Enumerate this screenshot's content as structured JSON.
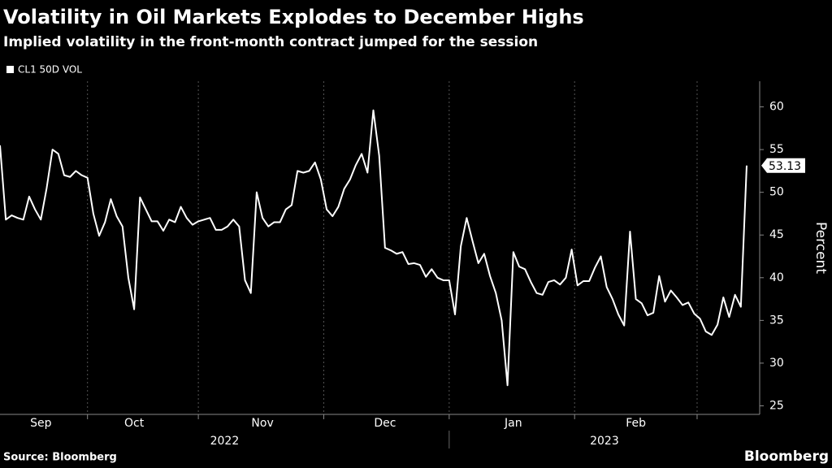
{
  "chart_data": {
    "type": "line",
    "title": "Volatility in Oil Markets Explodes to December Highs",
    "subtitle": "Implied volatility in the front-month contract jumped for the session",
    "y_axis_label": "Percent",
    "source": "Source: Bloomberg",
    "brand": "Bloomberg",
    "axis_side": "right",
    "grid": "x",
    "legend_position": "top-left",
    "categories": [
      null,
      null,
      null,
      null,
      null,
      null,
      null,
      "Sep",
      null,
      null,
      null,
      null,
      null,
      null,
      null,
      null,
      null,
      null,
      null,
      null,
      null,
      null,
      null,
      "Oct",
      null,
      null,
      null,
      null,
      null,
      null,
      null,
      null,
      null,
      null,
      null,
      null,
      null,
      null,
      null,
      null,
      null,
      null,
      null,
      null,
      null,
      "Nov",
      null,
      null,
      null,
      null,
      null,
      null,
      null,
      null,
      null,
      null,
      null,
      null,
      null,
      null,
      null,
      null,
      null,
      null,
      null,
      null,
      "Dec",
      null,
      null,
      null,
      null,
      null,
      null,
      null,
      null,
      null,
      null,
      null,
      null,
      null,
      null,
      null,
      null,
      null,
      null,
      null,
      null,
      null,
      "Jan",
      null,
      null,
      null,
      null,
      null,
      null,
      null,
      null,
      null,
      null,
      null,
      null,
      null,
      null,
      null,
      null,
      null,
      null,
      null,
      null,
      "Feb",
      null,
      null,
      null,
      null,
      null,
      null,
      null,
      null,
      null,
      null,
      null,
      null,
      null,
      null,
      null,
      null,
      null,
      null,
      null
    ],
    "x_groups": [
      {
        "label": "2022",
        "span": 4
      },
      {
        "label": "2023",
        "span": 2
      }
    ],
    "series": [
      {
        "name": "CL1 50D VOL",
        "color": "#ffffff",
        "values": [
          55.5,
          46.8,
          47.3,
          47.0,
          46.8,
          49.5,
          48.0,
          46.8,
          50.5,
          55.0,
          54.5,
          52.0,
          51.8,
          52.5,
          52.0,
          51.7,
          47.5,
          44.9,
          46.5,
          49.2,
          47.2,
          46.0,
          40.0,
          36.3,
          49.4,
          48.0,
          46.6,
          46.6,
          45.5,
          46.8,
          46.5,
          48.3,
          47.0,
          46.2,
          46.6,
          46.8,
          47.0,
          45.6,
          45.6,
          46.0,
          46.8,
          46.0,
          39.7,
          38.2,
          50.0,
          47.0,
          46.0,
          46.5,
          46.5,
          48.0,
          48.5,
          52.5,
          52.3,
          52.5,
          53.5,
          51.5,
          48.0,
          47.2,
          48.3,
          50.4,
          51.5,
          53.2,
          54.5,
          52.3,
          59.6,
          54.3,
          43.5,
          43.2,
          42.8,
          43.0,
          41.6,
          41.7,
          41.5,
          40.1,
          41.0,
          40.0,
          39.7,
          39.7,
          35.7,
          43.7,
          47.0,
          44.3,
          41.7,
          42.8,
          40.2,
          38.2,
          35.0,
          27.4,
          43.0,
          41.3,
          41.0,
          39.5,
          38.2,
          38.0,
          39.5,
          39.7,
          39.2,
          40.0,
          43.3,
          39.1,
          39.6,
          39.6,
          41.2,
          42.5,
          38.9,
          37.5,
          35.7,
          34.4,
          45.4,
          37.5,
          37.0,
          35.6,
          35.9,
          40.2,
          37.2,
          38.5,
          37.7,
          36.8,
          37.1,
          35.8,
          35.2,
          33.7,
          33.3,
          34.5,
          37.7,
          35.4,
          38.0,
          36.6,
          53.13
        ]
      }
    ],
    "ylim": [
      24,
      63
    ],
    "yticks": [
      25,
      30,
      35,
      40,
      45,
      50,
      55,
      60
    ]
  }
}
